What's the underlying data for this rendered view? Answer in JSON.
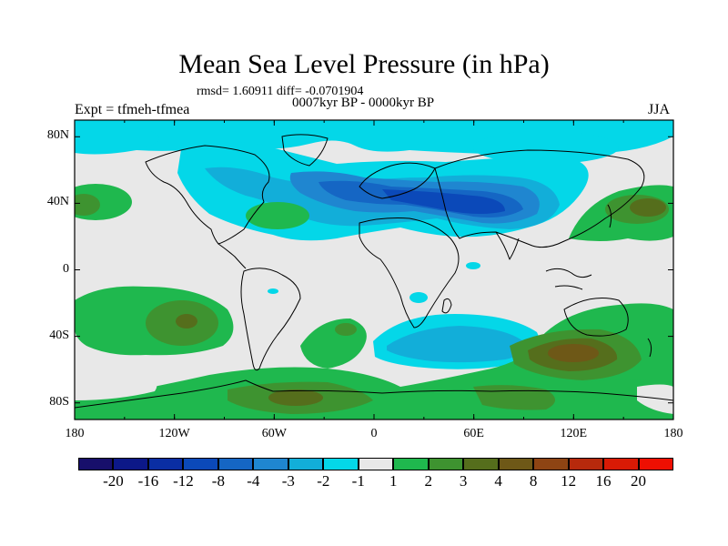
{
  "title": "Mean Sea Level Pressure (in hPa)",
  "stats": "rmsd= 1.60911 diff= -0.0701904",
  "period": "0007kyr BP - 0000kyr BP",
  "experiment": "Expt = tfmeh-tfmea",
  "season": "JJA",
  "lat_labels": [
    "80N",
    "40N",
    "0",
    "40S",
    "80S"
  ],
  "lat_values": [
    80,
    40,
    0,
    -40,
    -80
  ],
  "lon_labels": [
    "180",
    "120W",
    "60W",
    "0",
    "60E",
    "120E",
    "180"
  ],
  "lon_values": [
    -180,
    -120,
    -60,
    0,
    60,
    120,
    180
  ],
  "legend": {
    "labels": [
      "-20",
      "-16",
      "-12",
      "-8",
      "-4",
      "-3",
      "-2",
      "-1",
      "1",
      "2",
      "3",
      "4",
      "8",
      "12",
      "16",
      "20"
    ],
    "colors": [
      "#170f6b",
      "#0c1888",
      "#0a2ea3",
      "#0b49b9",
      "#1566c4",
      "#1f86d0",
      "#12aed9",
      "#04d7e8",
      "#e8e8e8",
      "#1fb84e",
      "#3e9330",
      "#556e1c",
      "#6e5817",
      "#8e4413",
      "#b7290c",
      "#d91a05",
      "#ee0f02"
    ]
  },
  "colors": {
    "background": "#e8e8e8",
    "coast": "#000000"
  }
}
